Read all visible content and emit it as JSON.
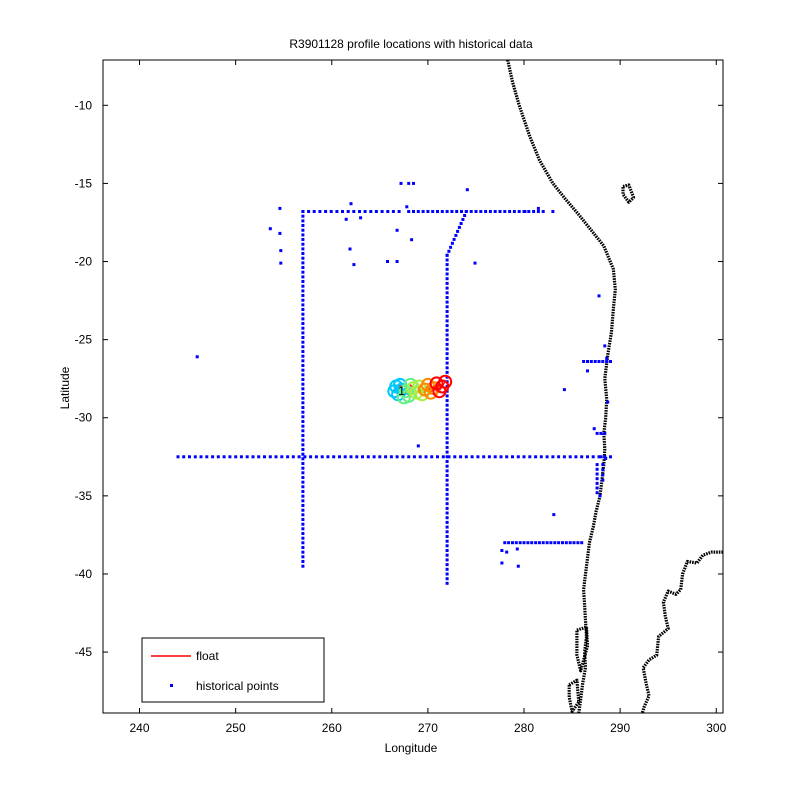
{
  "chart_data": {
    "type": "scatter",
    "title": "R3901128 profile locations with historical data",
    "xlabel": "Longitude",
    "ylabel": "Latitude",
    "xlim": [
      236.2,
      300.7
    ],
    "ylim": [
      -48.9,
      -7.1
    ],
    "xticks": [
      240,
      250,
      260,
      270,
      280,
      290,
      300
    ],
    "yticks": [
      -10,
      -15,
      -20,
      -25,
      -30,
      -35,
      -40,
      -45
    ],
    "grid": false,
    "legend_position": "bottom-left",
    "legend": [
      {
        "label": "float",
        "color": "#ff0000",
        "marker": "line"
      },
      {
        "label": "historical points",
        "color": "#0000ff",
        "marker": "dot"
      }
    ],
    "colors": {
      "historical": "#0000ff",
      "coast": "#000000",
      "float_ramp": [
        "#00c8ff",
        "#66ee88",
        "#aaee44",
        "#ff8800",
        "#ff0000"
      ]
    },
    "historical_segments": [
      {
        "from": [
          244,
          -32.5
        ],
        "to": [
          289,
          -32.5
        ],
        "step": 0.6
      },
      {
        "from": [
          257,
          -16.8
        ],
        "to": [
          257,
          -39.5
        ],
        "step": 0.3
      },
      {
        "from": [
          272,
          -19.6
        ],
        "to": [
          272,
          -40.6
        ],
        "step": 0.3
      },
      {
        "from": [
          257,
          -16.8
        ],
        "to": [
          267,
          -16.8
        ],
        "step": 0.6
      },
      {
        "from": [
          268,
          -16.8
        ],
        "to": [
          282,
          -16.8
        ],
        "step": 0.5
      },
      {
        "from": [
          272,
          -19.6
        ],
        "to": [
          274,
          -16.8
        ],
        "step": 0.3
      },
      {
        "from": [
          278,
          -38.0
        ],
        "to": [
          286,
          -38.0
        ],
        "step": 0.4
      },
      {
        "from": [
          286.2,
          -26.4
        ],
        "to": [
          289,
          -26.4
        ],
        "step": 0.4
      },
      {
        "from": [
          287.6,
          -31.0
        ],
        "to": [
          288.4,
          -31.0
        ],
        "step": 0.4
      },
      {
        "from": [
          287.6,
          -33.0
        ],
        "to": [
          287.6,
          -34.8
        ],
        "step": 0.3
      },
      {
        "from": [
          288.2,
          -33.0
        ],
        "to": [
          288.2,
          -34.0
        ],
        "step": 0.3
      }
    ],
    "historical_points": [
      [
        246,
        -26.1
      ],
      [
        253.6,
        -17.9
      ],
      [
        254.6,
        -16.6
      ],
      [
        254.6,
        -18.2
      ],
      [
        254.7,
        -19.3
      ],
      [
        254.7,
        -20.1
      ],
      [
        261.5,
        -17.3
      ],
      [
        262,
        -16.3
      ],
      [
        261.9,
        -19.2
      ],
      [
        262.3,
        -20.2
      ],
      [
        263,
        -17.2
      ],
      [
        265.8,
        -20.0
      ],
      [
        266.8,
        -18.0
      ],
      [
        266.8,
        -20.0
      ],
      [
        267.2,
        -15.0
      ],
      [
        267.8,
        -16.5
      ],
      [
        268.0,
        -15.0
      ],
      [
        268.3,
        -18.6
      ],
      [
        268.5,
        -15.0
      ],
      [
        269,
        -31.8
      ],
      [
        274.1,
        -15.4
      ],
      [
        274.9,
        -20.1
      ],
      [
        277.7,
        -38.5
      ],
      [
        277.7,
        -39.3
      ],
      [
        278.2,
        -38.6
      ],
      [
        279.3,
        -38.4
      ],
      [
        279.4,
        -39.5
      ],
      [
        280.1,
        -16.8
      ],
      [
        281.5,
        -16.6
      ],
      [
        283.0,
        -16.8
      ],
      [
        283.1,
        -36.2
      ],
      [
        284.2,
        -28.2
      ],
      [
        286.6,
        -27.0
      ],
      [
        287.8,
        -22.2
      ],
      [
        288.4,
        -25.4
      ],
      [
        288.6,
        -26.2
      ],
      [
        288.7,
        -29.0
      ],
      [
        288.0,
        -32.5
      ],
      [
        288.5,
        -32.6
      ],
      [
        287.9,
        -35.0
      ],
      [
        287.6,
        -34.5
      ],
      [
        287.3,
        -30.7
      ]
    ],
    "float_points": [
      [
        266.5,
        -28.3
      ],
      [
        266.7,
        -28.0
      ],
      [
        266.9,
        -28.5
      ],
      [
        267.1,
        -27.9
      ],
      [
        267.3,
        -28.2
      ],
      [
        267.5,
        -28.7
      ],
      [
        267.7,
        -28.3
      ],
      [
        268.0,
        -28.6
      ],
      [
        268.2,
        -27.9
      ],
      [
        268.5,
        -28.1
      ],
      [
        268.8,
        -28.4
      ],
      [
        269.1,
        -28.0
      ],
      [
        269.4,
        -28.5
      ],
      [
        269.7,
        -28.2
      ],
      [
        270.0,
        -27.9
      ],
      [
        270.3,
        -28.4
      ],
      [
        270.6,
        -28.1
      ],
      [
        270.9,
        -27.8
      ],
      [
        271.2,
        -28.3
      ],
      [
        271.5,
        -28.0
      ],
      [
        271.8,
        -27.7
      ]
    ],
    "float_label": "1",
    "coastline_main": [
      [
        278.3,
        -7.1
      ],
      [
        278.8,
        -8.5
      ],
      [
        279.5,
        -10.0
      ],
      [
        280.6,
        -12.0
      ],
      [
        281.6,
        -13.5
      ],
      [
        283.0,
        -15.0
      ],
      [
        284.3,
        -16.0
      ],
      [
        285.7,
        -17.0
      ],
      [
        287.0,
        -18.0
      ],
      [
        288.3,
        -19.0
      ],
      [
        289.3,
        -20.5
      ],
      [
        289.5,
        -21.8
      ],
      [
        289.3,
        -23.0
      ],
      [
        289.1,
        -24.5
      ],
      [
        288.7,
        -26.0
      ],
      [
        288.4,
        -27.5
      ],
      [
        288.6,
        -28.8
      ],
      [
        288.5,
        -30.0
      ],
      [
        288.3,
        -31.0
      ],
      [
        288.4,
        -32.0
      ],
      [
        288.3,
        -33.0
      ],
      [
        288.1,
        -34.0
      ],
      [
        287.9,
        -35.0
      ],
      [
        287.5,
        -36.0
      ],
      [
        287.2,
        -37.0
      ],
      [
        286.8,
        -38.0
      ],
      [
        286.6,
        -39.0
      ],
      [
        286.4,
        -40.0
      ],
      [
        286.2,
        -41.0
      ],
      [
        286.3,
        -42.0
      ],
      [
        286.4,
        -43.0
      ],
      [
        286.5,
        -44.0
      ],
      [
        286.3,
        -45.0
      ],
      [
        286.4,
        -46.0
      ],
      [
        286.1,
        -47.0
      ],
      [
        285.9,
        -48.0
      ],
      [
        285.7,
        -48.9
      ]
    ],
    "coastline_islands": [
      [
        [
          285.5,
          -43.6
        ],
        [
          286.5,
          -43.4
        ],
        [
          286.6,
          -44.6
        ],
        [
          285.9,
          -46.2
        ],
        [
          285.5,
          -45.2
        ],
        [
          285.5,
          -43.6
        ]
      ],
      [
        [
          284.7,
          -47.1
        ],
        [
          285.5,
          -46.8
        ],
        [
          285.7,
          -48.2
        ],
        [
          285.0,
          -48.8
        ],
        [
          284.7,
          -47.9
        ],
        [
          284.7,
          -47.1
        ]
      ],
      [
        [
          290.3,
          -15.2
        ],
        [
          290.9,
          -15.1
        ],
        [
          291.4,
          -15.9
        ],
        [
          290.9,
          -16.2
        ],
        [
          290.3,
          -15.7
        ],
        [
          290.3,
          -15.2
        ]
      ]
    ],
    "coastline_east": [
      [
        300.7,
        -38.6
      ],
      [
        299.5,
        -38.6
      ],
      [
        298.6,
        -38.8
      ],
      [
        298.0,
        -39.3
      ],
      [
        297.0,
        -39.2
      ],
      [
        296.5,
        -40.0
      ],
      [
        296.3,
        -41.0
      ],
      [
        295.8,
        -41.3
      ],
      [
        295.0,
        -41.1
      ],
      [
        294.5,
        -41.8
      ],
      [
        294.7,
        -42.7
      ],
      [
        295.0,
        -43.5
      ],
      [
        294.0,
        -44.0
      ],
      [
        293.8,
        -45.2
      ],
      [
        293.0,
        -45.5
      ],
      [
        292.4,
        -46.0
      ],
      [
        292.7,
        -47.0
      ],
      [
        293.0,
        -47.8
      ],
      [
        292.5,
        -48.5
      ],
      [
        292.3,
        -48.9
      ]
    ]
  }
}
